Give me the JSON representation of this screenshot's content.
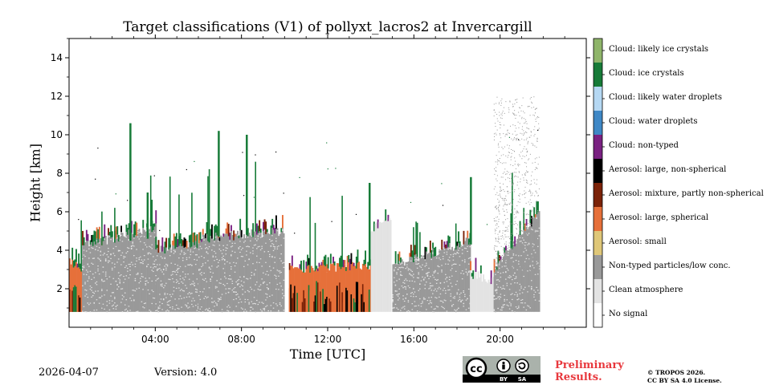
{
  "chart_data": {
    "type": "heatmap",
    "title": "Target classifications (V1) of pollyxt_lacros2 at Invercargill",
    "xlabel": "Time [UTC]",
    "ylabel": "Height [km]",
    "xlim": [
      0,
      24
    ],
    "ylim": [
      0,
      15
    ],
    "x_ticks": [
      {
        "value": 4,
        "label": "04:00"
      },
      {
        "value": 8,
        "label": "08:00"
      },
      {
        "value": 12,
        "label": "12:00"
      },
      {
        "value": 16,
        "label": "16:00"
      },
      {
        "value": 20,
        "label": "20:00"
      }
    ],
    "y_ticks": [
      {
        "value": 2,
        "label": "2"
      },
      {
        "value": 4,
        "label": "4"
      },
      {
        "value": 6,
        "label": "6"
      },
      {
        "value": 8,
        "label": "8"
      },
      {
        "value": 10,
        "label": "10"
      },
      {
        "value": 12,
        "label": "12"
      },
      {
        "value": 14,
        "label": "14"
      }
    ],
    "classes": [
      {
        "label": "Cloud: likely ice crystals",
        "color": "#8fb56a"
      },
      {
        "label": "Cloud: ice crystals",
        "color": "#177b38"
      },
      {
        "label": "Cloud: likely water droplets",
        "color": "#b5d8f3"
      },
      {
        "label": "Cloud: water droplets",
        "color": "#3f88c6"
      },
      {
        "label": "Cloud: non-typed",
        "color": "#7a2182"
      },
      {
        "label": "Aerosol: large, non-spherical",
        "color": "#000000"
      },
      {
        "label": "Aerosol: mixture, partly non-spherical",
        "color": "#7b2208"
      },
      {
        "label": "Aerosol: large, spherical",
        "color": "#e6703a"
      },
      {
        "label": "Aerosol: small",
        "color": "#dfc778"
      },
      {
        "label": "Non-typed particles/low conc.",
        "color": "#999999"
      },
      {
        "label": "Clean atmosphere",
        "color": "#e3e3e3"
      },
      {
        "label": "No signal",
        "color": "#ffffff"
      }
    ],
    "profile_data": {
      "bottom_km": 0.8,
      "gaps_utc": [
        [
          9.95,
          10.2
        ],
        [
          14.9,
          15.0
        ]
      ],
      "segments": [
        {
          "start": 0.0,
          "end": 0.6,
          "base": "orange",
          "top_km": [
            3.5,
            2.8
          ]
        },
        {
          "start": 0.6,
          "end": 4.0,
          "base": "gray",
          "top_km": [
            4.2,
            5.2
          ]
        },
        {
          "start": 4.0,
          "end": 6.0,
          "base": "gray",
          "top_km": [
            4.0,
            4.3
          ]
        },
        {
          "start": 6.0,
          "end": 9.95,
          "base": "gray",
          "top_km": [
            4.6,
            5.0
          ]
        },
        {
          "start": 10.2,
          "end": 14.0,
          "base": "orange",
          "top_km": [
            3.0,
            3.2
          ]
        },
        {
          "start": 14.0,
          "end": 14.9,
          "base": "clean",
          "top_km": [
            5.0,
            5.8
          ]
        },
        {
          "start": 15.0,
          "end": 18.6,
          "base": "gray",
          "top_km": [
            3.2,
            4.5
          ]
        },
        {
          "start": 18.6,
          "end": 19.7,
          "base": "clean",
          "top_km": [
            2.8,
            2.4
          ]
        },
        {
          "start": 19.7,
          "end": 21.8,
          "base": "gray",
          "top_km": [
            3.0,
            6.0
          ]
        }
      ]
    }
  },
  "footer": {
    "date": "2026-04-07",
    "version": "Version: 4.0",
    "preliminary_line1": "Preliminary",
    "preliminary_line2": "Results.",
    "copyright_line1": "© TROPOS 2026.",
    "copyright_line2": "CC BY SA 4.0 License.",
    "cc_badge_text": "cc",
    "cc_by": "BY",
    "cc_sa": "SA"
  }
}
